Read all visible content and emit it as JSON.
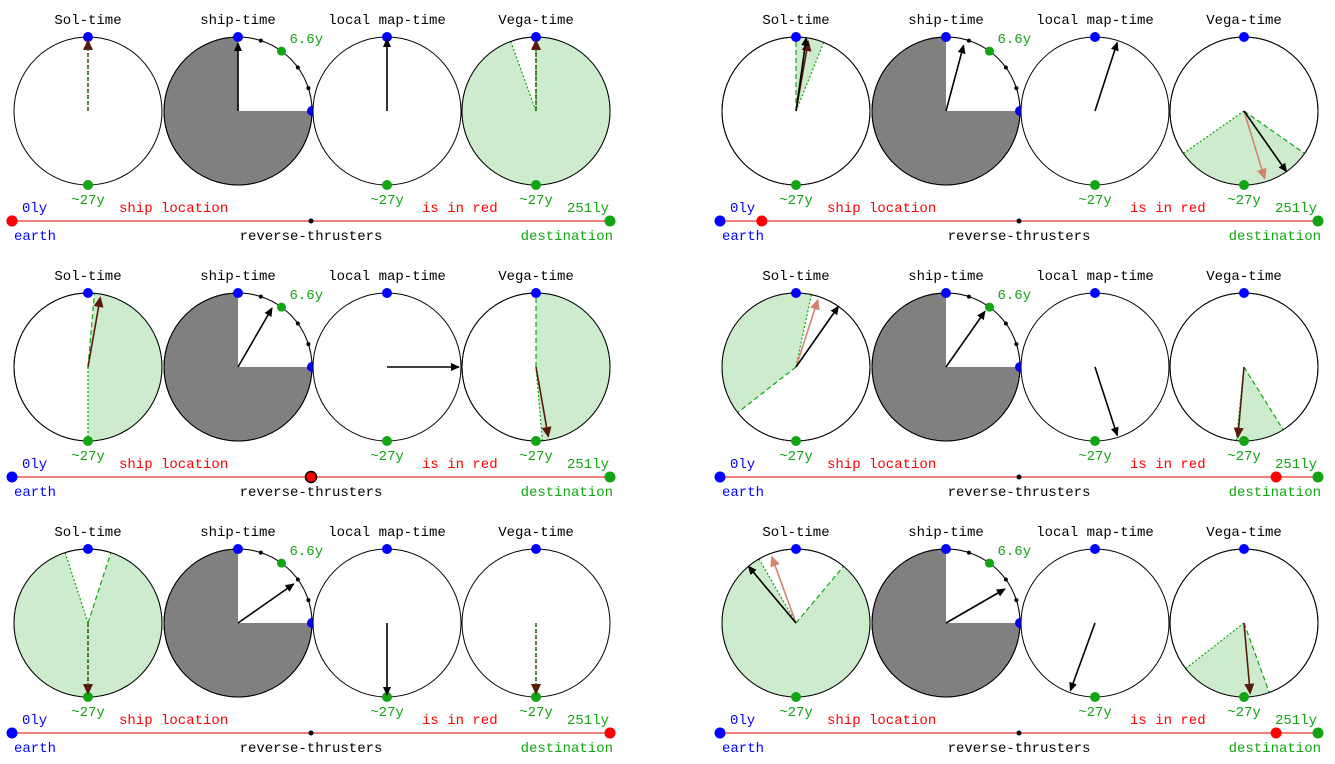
{
  "labels": {
    "clock_titles": [
      "Sol-time",
      "ship-time",
      "local map-time",
      "Vega-time"
    ],
    "ship_max": "6.6y",
    "earth_clock_max": "~27y",
    "start_dist": "0ly",
    "end_dist": "251ly",
    "legend_a": "ship location",
    "legend_b": "is in red",
    "earth": "earth",
    "midpoint": "reverse-thrusters",
    "destination": "destination"
  },
  "colors": {
    "earth_blue": "#0000ff",
    "dest_green": "#11a611",
    "ship_red": "#ff0000",
    "track_line": "#f08080",
    "wedge_fill": "#cdeccd",
    "ship_shade": "#808080",
    "dark_arrow": "#5a1a0a",
    "pale_arrow": "#d4836c"
  },
  "panels": [
    {
      "ship_pos": 0.0,
      "ship_time": 0.0,
      "clocks": [
        {
          "type": "sol",
          "wedge": [
            0,
            0
          ],
          "hand_dark": 0,
          "hand_pale": null,
          "hand_black": null,
          "hand_dashed": true
        },
        {
          "type": "ship",
          "hand": 0
        },
        {
          "type": "local",
          "hand": 0
        },
        {
          "type": "vega",
          "wedge": [
            0,
            340
          ],
          "hand_dark": 0,
          "hand_pale": null,
          "hand_black": null,
          "hand_dashed": true
        }
      ]
    },
    {
      "ship_pos": 0.07,
      "ship_time": 0.25,
      "clocks": [
        {
          "type": "sol",
          "wedge": [
            0,
            22
          ],
          "hand_dark": 10,
          "hand_pale": null,
          "hand_black": 8,
          "hand_dashed": false
        },
        {
          "type": "ship",
          "hand": 15
        },
        {
          "type": "local",
          "hand": 18
        },
        {
          "type": "vega",
          "wedge": [
            125,
            235
          ],
          "hand_dark": null,
          "hand_pale": 163,
          "hand_black": 145,
          "hand_dashed": false
        }
      ]
    },
    {
      "ship_pos": 0.5,
      "ship_time": 0.5,
      "clocks": [
        {
          "type": "sol",
          "wedge": [
            5,
            180
          ],
          "hand_dark": 10,
          "hand_pale": null,
          "hand_black": null,
          "hand_dashed": false
        },
        {
          "type": "ship",
          "hand": 30
        },
        {
          "type": "local",
          "hand": 90
        },
        {
          "type": "vega",
          "wedge": [
            0,
            175
          ],
          "hand_dark": 170,
          "hand_pale": null,
          "hand_black": null,
          "hand_dashed": false
        }
      ]
    },
    {
      "ship_pos": 0.93,
      "ship_time": 0.75,
      "clocks": [
        {
          "type": "sol",
          "wedge": [
            232,
            372
          ],
          "hand_dark": null,
          "hand_pale": 18,
          "hand_black": 35,
          "hand_dashed": false
        },
        {
          "type": "ship",
          "hand": 35
        },
        {
          "type": "local",
          "hand": 162
        },
        {
          "type": "vega",
          "wedge": [
            148,
            186
          ],
          "hand_dark": 185,
          "hand_pale": null,
          "hand_black": null,
          "hand_dashed": false
        }
      ]
    },
    {
      "ship_pos": 1.0,
      "ship_time": 1.0,
      "clocks": [
        {
          "type": "sol",
          "wedge": [
            18,
            342
          ],
          "hand_dark": 180,
          "hand_pale": null,
          "hand_black": null,
          "hand_dashed": true
        },
        {
          "type": "ship",
          "hand": 55
        },
        {
          "type": "local",
          "hand": 180
        },
        {
          "type": "vega",
          "wedge": [
            180,
            180
          ],
          "hand_dark": 180,
          "hand_pale": null,
          "hand_black": null,
          "hand_dashed": true
        }
      ]
    },
    {
      "ship_pos": 0.93,
      "ship_time": 1.0,
      "clocks": [
        {
          "type": "sol",
          "wedge": [
            40,
            330
          ],
          "hand_dark": null,
          "hand_pale": 340,
          "hand_black": 320,
          "hand_dashed": false
        },
        {
          "type": "ship",
          "hand": 60
        },
        {
          "type": "local",
          "hand": 200
        },
        {
          "type": "vega",
          "wedge": [
            160,
            232
          ],
          "hand_dark": 175,
          "hand_pale": null,
          "hand_black": null,
          "hand_dashed": false
        }
      ]
    }
  ]
}
